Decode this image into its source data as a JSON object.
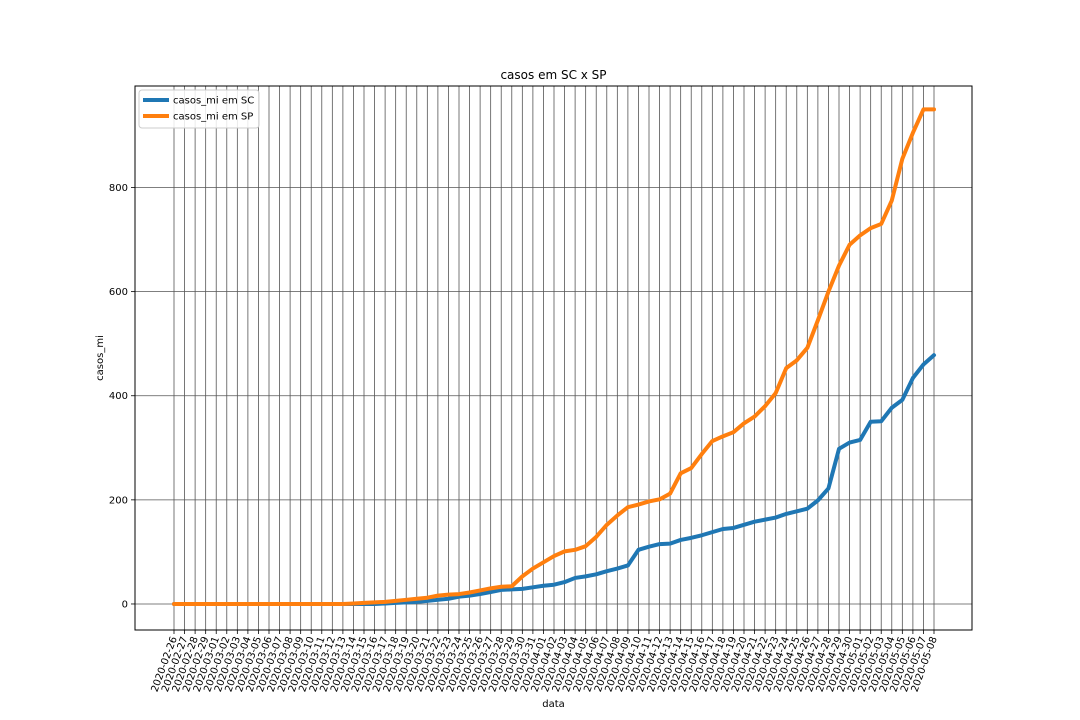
{
  "chart_data": {
    "type": "line",
    "title": "casos em SC x SP",
    "xlabel": "data",
    "ylabel": "casos_mi",
    "ylim": [
      -50,
      995
    ],
    "yticks": [
      0,
      200,
      400,
      600,
      800
    ],
    "grid": true,
    "legend_position": "upper-left",
    "x": [
      "2020-02-26",
      "2020-02-27",
      "2020-02-28",
      "2020-02-29",
      "2020-03-01",
      "2020-03-02",
      "2020-03-03",
      "2020-03-04",
      "2020-03-05",
      "2020-03-06",
      "2020-03-07",
      "2020-03-08",
      "2020-03-09",
      "2020-03-10",
      "2020-03-11",
      "2020-03-12",
      "2020-03-13",
      "2020-03-14",
      "2020-03-15",
      "2020-03-16",
      "2020-03-17",
      "2020-03-18",
      "2020-03-19",
      "2020-03-20",
      "2020-03-21",
      "2020-03-22",
      "2020-03-23",
      "2020-03-24",
      "2020-03-25",
      "2020-03-26",
      "2020-03-27",
      "2020-03-28",
      "2020-03-29",
      "2020-03-30",
      "2020-03-31",
      "2020-04-01",
      "2020-04-02",
      "2020-04-03",
      "2020-04-04",
      "2020-04-05",
      "2020-04-06",
      "2020-04-07",
      "2020-04-08",
      "2020-04-09",
      "2020-04-10",
      "2020-04-11",
      "2020-04-12",
      "2020-04-13",
      "2020-04-14",
      "2020-04-15",
      "2020-04-16",
      "2020-04-17",
      "2020-04-18",
      "2020-04-19",
      "2020-04-20",
      "2020-04-21",
      "2020-04-22",
      "2020-04-23",
      "2020-04-24",
      "2020-04-25",
      "2020-04-26",
      "2020-04-27",
      "2020-04-28",
      "2020-04-29",
      "2020-04-30",
      "2020-05-01",
      "2020-05-02",
      "2020-05-03",
      "2020-05-04",
      "2020-05-05",
      "2020-05-06",
      "2020-05-07",
      "2020-05-08"
    ],
    "series": [
      {
        "name": "casos_mi em SC",
        "color": "#1f77b4",
        "values": [
          0,
          0,
          0,
          0,
          0,
          0,
          0,
          0,
          0,
          0,
          0,
          0,
          0,
          0,
          0,
          0,
          0,
          0,
          0,
          0,
          1,
          2,
          3,
          4,
          6,
          8,
          10,
          14,
          16,
          19,
          23,
          27,
          28,
          29,
          32,
          35,
          37,
          42,
          50,
          53,
          57,
          63,
          68,
          74,
          104,
          110,
          115,
          116,
          123,
          127,
          132,
          138,
          144,
          146,
          152,
          158,
          162,
          166,
          173,
          178,
          183,
          199,
          222,
          298,
          310,
          315,
          350,
          351,
          377,
          392,
          434,
          460,
          478
        ]
      },
      {
        "name": "casos_mi em SP",
        "color": "#ff7f0e",
        "values": [
          0,
          0,
          0,
          0,
          0,
          0,
          0,
          0,
          0,
          0,
          0,
          0,
          0,
          0,
          0,
          0,
          0,
          1,
          2,
          3,
          4,
          6,
          8,
          10,
          12,
          16,
          18,
          19,
          22,
          26,
          30,
          33,
          34,
          53,
          68,
          80,
          92,
          101,
          104,
          111,
          129,
          152,
          170,
          186,
          191,
          197,
          201,
          212,
          251,
          261,
          288,
          313,
          322,
          330,
          347,
          360,
          380,
          405,
          453,
          468,
          492,
          545,
          600,
          650,
          690,
          708,
          722,
          730,
          775,
          855,
          905,
          950,
          950
        ]
      }
    ]
  }
}
